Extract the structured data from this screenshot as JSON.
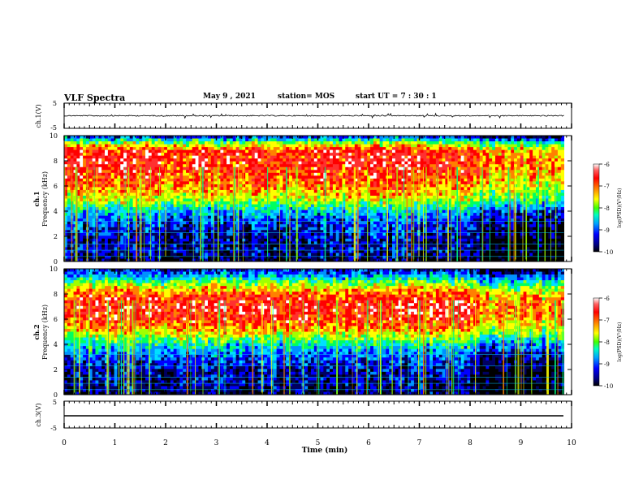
{
  "header": {
    "title": "VLF Spectra",
    "date": "May 9 , 2021",
    "station": "station= MOS",
    "start": "start UT = 7 : 30 : 1"
  },
  "chart_data": [
    {
      "type": "line",
      "panel": "waveform-ch1",
      "ylabel": "ch.1(V)",
      "ylim": [
        -5,
        5
      ],
      "y_ticks": [
        "5",
        "-5"
      ],
      "xlim": [
        0,
        10
      ],
      "series": [
        {
          "values_description_only": false,
          "x": [
            0,
            9.85
          ],
          "y": [
            0,
            0
          ]
        }
      ]
    },
    {
      "type": "heatmap",
      "panel": "spectrogram-ch1",
      "ylabel": "ch.1 Frequency (kHz)",
      "xlim": [
        0,
        10
      ],
      "ylim": [
        0,
        10
      ],
      "y_ticks": [
        "0",
        "2",
        "4",
        "6",
        "8",
        "10"
      ],
      "data_extent_x": [
        0,
        9.85
      ],
      "intensity_profile_khz": [
        [
          0,
          -9.6
        ],
        [
          1,
          -9.4
        ],
        [
          2,
          -9.3
        ],
        [
          3,
          -9.1
        ],
        [
          4,
          -8.6
        ],
        [
          4.5,
          -8.1
        ],
        [
          5,
          -7.6
        ],
        [
          6,
          -7.1
        ],
        [
          7,
          -6.8
        ],
        [
          8,
          -6.7
        ],
        [
          8.8,
          -6.8
        ],
        [
          9.4,
          -7.8
        ],
        [
          10,
          -9.3
        ]
      ],
      "colorbar": {
        "label": "log(PSD)(V²/Hz)",
        "range": [
          -10,
          -6
        ],
        "ticks": [
          "-6",
          "-7",
          "-8",
          "-9",
          "-10"
        ]
      }
    },
    {
      "type": "heatmap",
      "panel": "spectrogram-ch2",
      "ylabel": "ch.2 Frequency (kHz)",
      "xlim": [
        0,
        10
      ],
      "ylim": [
        0,
        10
      ],
      "y_ticks": [
        "0",
        "2",
        "4",
        "6",
        "8",
        "10"
      ],
      "data_extent_x": [
        0,
        9.85
      ],
      "intensity_profile_khz": [
        [
          0,
          -9.6
        ],
        [
          1,
          -9.4
        ],
        [
          2,
          -9.3
        ],
        [
          3,
          -9.0
        ],
        [
          4,
          -8.4
        ],
        [
          4.5,
          -7.9
        ],
        [
          5,
          -7.4
        ],
        [
          6,
          -6.8
        ],
        [
          7,
          -6.6
        ],
        [
          8,
          -7.0
        ],
        [
          8.8,
          -7.8
        ],
        [
          9.4,
          -8.6
        ],
        [
          10,
          -9.3
        ]
      ],
      "colorbar": {
        "label": "log(PSD)(V²/Hz)",
        "range": [
          -10,
          -6
        ],
        "ticks": [
          "-6",
          "-7",
          "-8",
          "-9",
          "-10"
        ]
      }
    },
    {
      "type": "line",
      "panel": "waveform-ch3",
      "ylabel": "ch.3(V)",
      "ylim": [
        -5,
        5
      ],
      "y_ticks": [
        "5",
        "-5"
      ],
      "xlim": [
        0,
        10
      ],
      "xlabel": "Time (min)",
      "x_ticks": [
        "0",
        "1",
        "2",
        "3",
        "4",
        "5",
        "6",
        "7",
        "8",
        "9",
        "10"
      ],
      "series": [
        {
          "x": [
            0,
            9.85
          ],
          "y": [
            0,
            0
          ]
        }
      ]
    }
  ],
  "colormap": [
    "#000000",
    "#000060",
    "#0000ff",
    "#0090ff",
    "#00e0ff",
    "#00ff60",
    "#a0ff00",
    "#ffff00",
    "#ff8000",
    "#ff0000",
    "#ff3030",
    "#ffffff"
  ]
}
